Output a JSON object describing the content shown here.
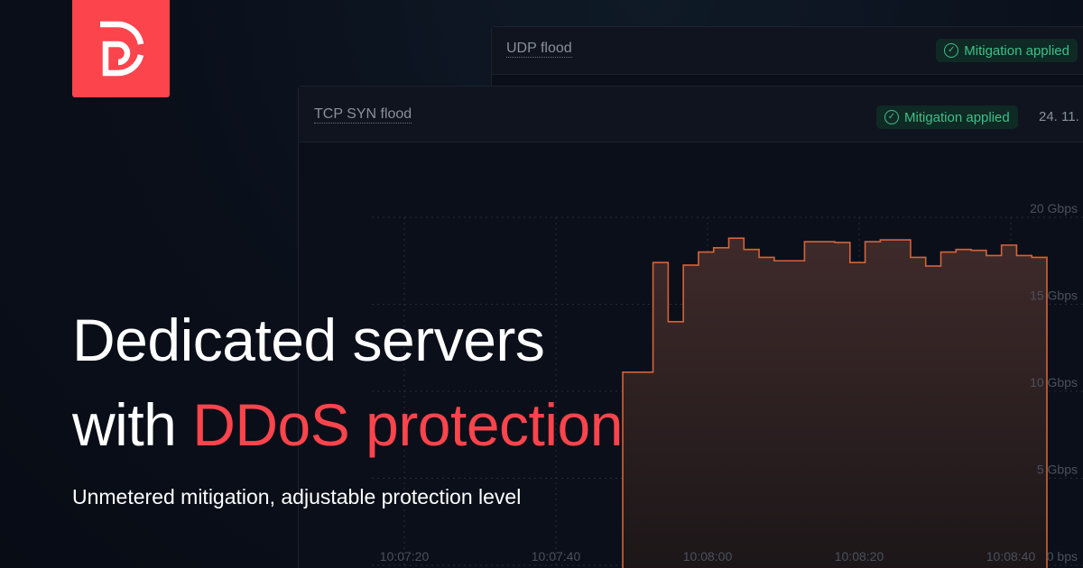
{
  "brand": {
    "logo_color": "#fb444c",
    "logo_icon": "d-monogram"
  },
  "cards": [
    {
      "title": "UDP flood",
      "badge": "Mitigation applied"
    },
    {
      "title": "TCP SYN flood",
      "badge": "Mitigation applied",
      "date": "24. 11."
    }
  ],
  "headline": {
    "line1": "Dedicated servers",
    "line2_plain": "with ",
    "line2_accent": "DDoS protection"
  },
  "subtitle": "Unmetered mitigation, adjustable protection level",
  "colors": {
    "accent": "#fb444c",
    "success": "#3fbf8a",
    "series": "#d3643a"
  },
  "chart_data": {
    "type": "area",
    "step": true,
    "y_ticks": [
      "0 bps",
      "5 Gbps",
      "10 Gbps",
      "15 Gbps",
      "20 Gbps"
    ],
    "x_ticks": [
      "10:07:20",
      "10:07:40",
      "10:08:00",
      "10:08:20",
      "10:08:40"
    ],
    "ylim": [
      0,
      20
    ],
    "unit": "Gbps",
    "grid": true,
    "values": [
      11.1,
      11.1,
      17.4,
      14.0,
      17.25,
      18.0,
      18.25,
      18.8,
      18.15,
      17.7,
      17.5,
      17.5,
      18.6,
      18.6,
      18.55,
      17.4,
      18.6,
      18.7,
      18.7,
      17.7,
      17.2,
      18.0,
      18.15,
      18.1,
      17.8,
      18.4,
      17.8,
      17.7
    ]
  }
}
